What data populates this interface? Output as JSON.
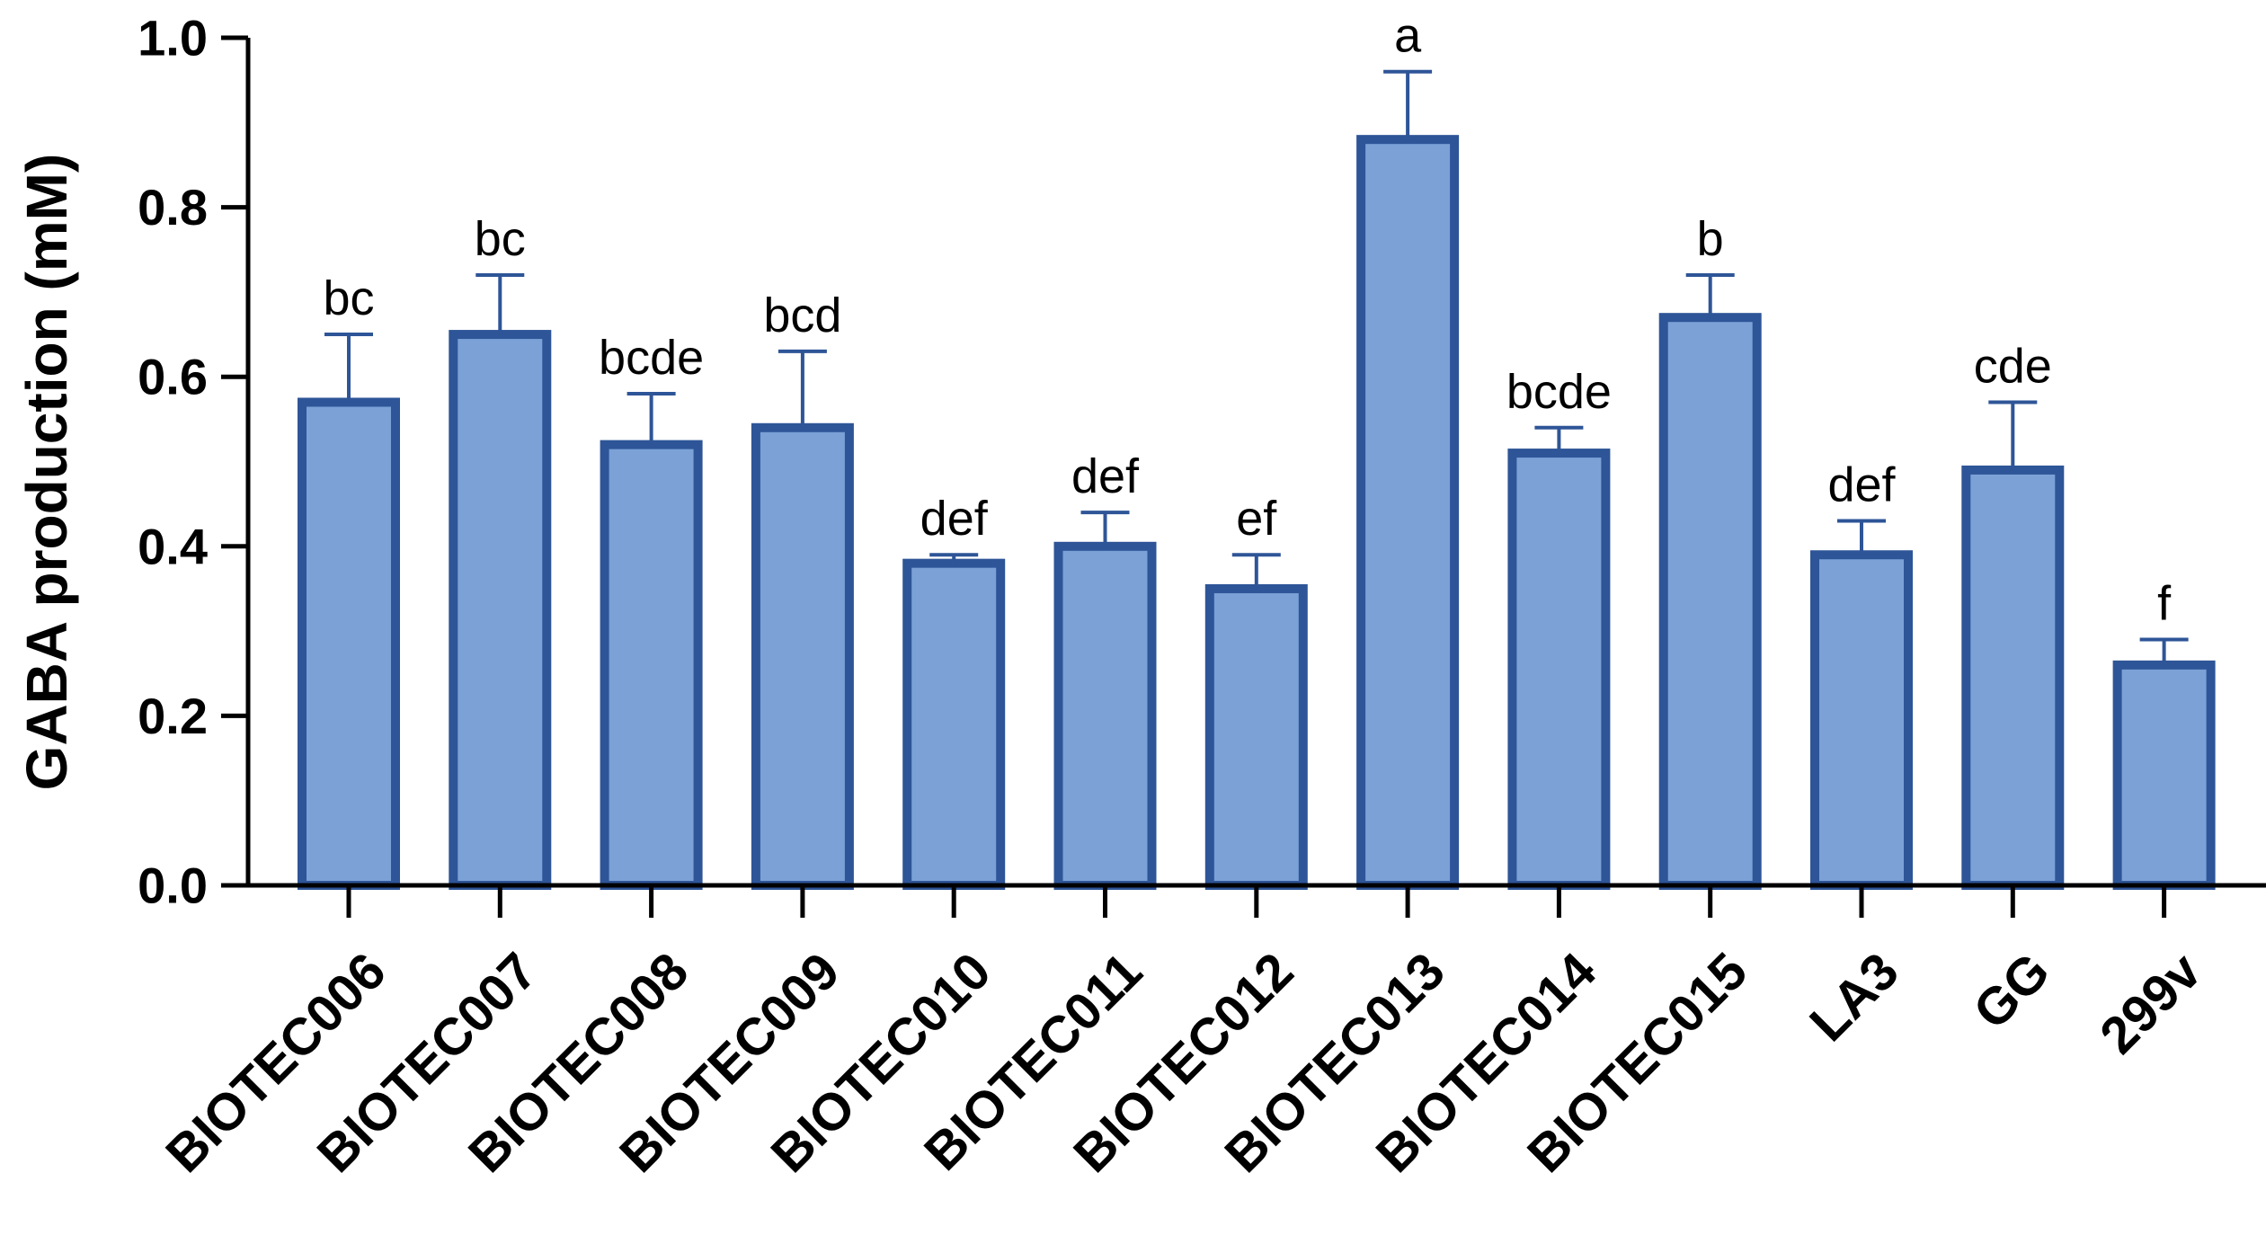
{
  "chart_data": {
    "type": "bar",
    "title": "",
    "xlabel": "",
    "ylabel": "GABA production (mM)",
    "ylim": [
      0,
      1.0
    ],
    "yticks": [
      "0.0",
      "0.2",
      "0.4",
      "0.6",
      "0.8",
      "1.0"
    ],
    "grid": false,
    "categories": [
      "BIOTEC006",
      "BIOTEC007",
      "BIOTEC008",
      "BIOTEC009",
      "BIOTEC010",
      "BIOTEC011",
      "BIOTEC012",
      "BIOTEC013",
      "BIOTEC014",
      "BIOTEC015",
      "LA3",
      "GG",
      "299v"
    ],
    "values": [
      0.57,
      0.65,
      0.52,
      0.54,
      0.38,
      0.4,
      0.35,
      0.88,
      0.51,
      0.67,
      0.39,
      0.49,
      0.26
    ],
    "error_upper": [
      0.65,
      0.72,
      0.58,
      0.63,
      0.39,
      0.44,
      0.39,
      0.96,
      0.54,
      0.72,
      0.43,
      0.57,
      0.29
    ],
    "significance_letters": [
      "bc",
      "bc",
      "bcde",
      "bcd",
      "def",
      "def",
      "ef",
      "a",
      "bcde",
      "b",
      "def",
      "cde",
      "f"
    ],
    "bar_fill_color": "#7ba1d6",
    "bar_edge_color": "#2e5597",
    "axis_color": "#000000"
  }
}
